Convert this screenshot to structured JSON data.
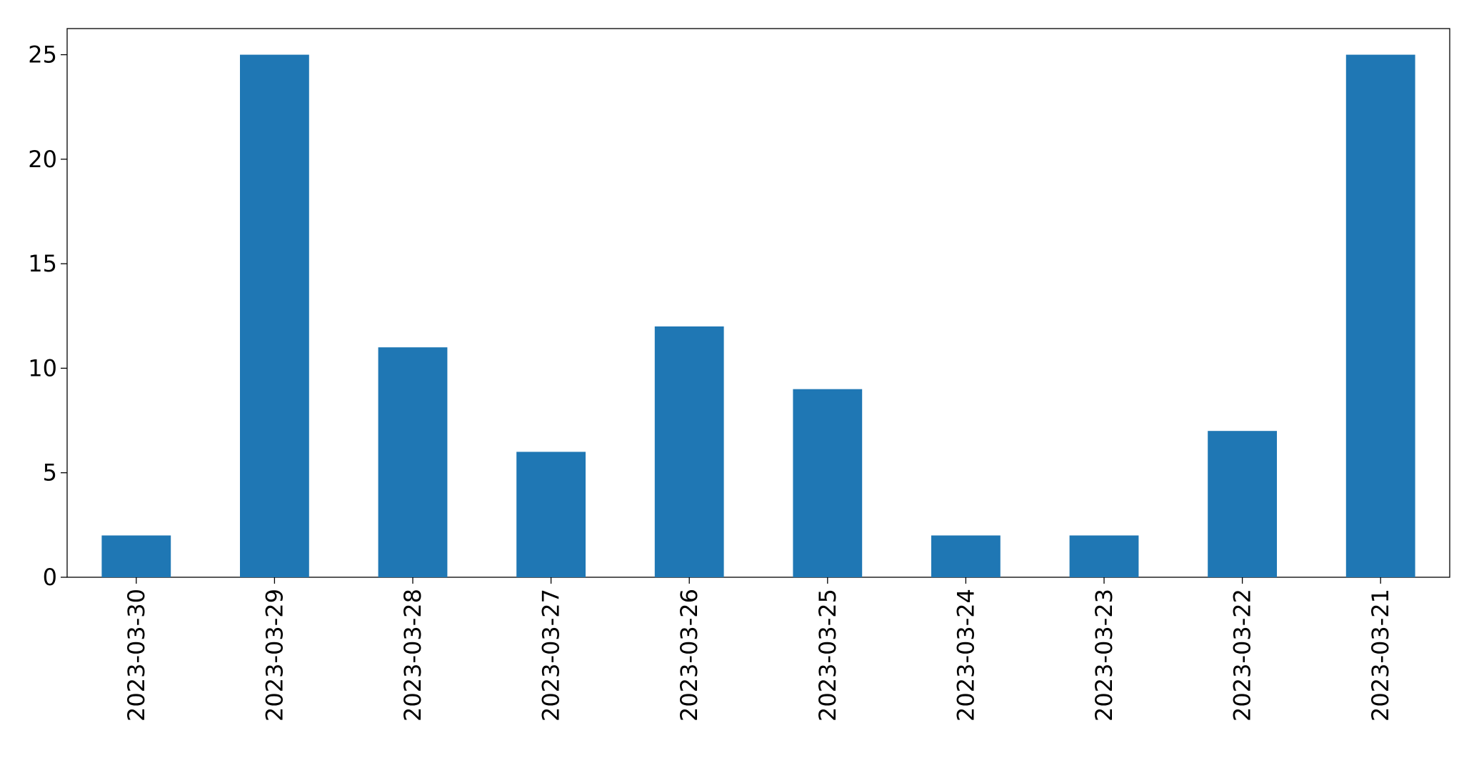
{
  "chart_data": {
    "type": "bar",
    "categories": [
      "2023-03-30",
      "2023-03-29",
      "2023-03-28",
      "2023-03-27",
      "2023-03-26",
      "2023-03-25",
      "2023-03-24",
      "2023-03-23",
      "2023-03-22",
      "2023-03-21"
    ],
    "values": [
      2,
      25,
      11,
      6,
      12,
      9,
      2,
      2,
      7,
      25
    ],
    "color": "#1f77b4",
    "ylim": [
      0,
      26.25
    ],
    "yticks": [
      0,
      5,
      10,
      15,
      20,
      25
    ],
    "grid": false
  }
}
